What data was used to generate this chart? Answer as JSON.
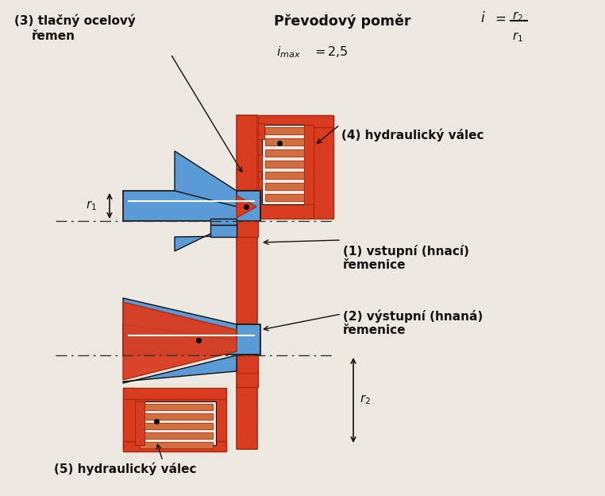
{
  "bg_color": "#ede8e0",
  "blue": "#5b9bd5",
  "red": "#d93b1e",
  "red_edge": "#aa2a10",
  "dark": "#111111",
  "white": "#ffffff",
  "copper": "#d07040",
  "title": "Převodový poměr",
  "label1": "(1) vstupní (hnací)\nřemenice",
  "label2": "(2) výstupní (hnaná)\nřemenice",
  "label3": "(3) tlačný ocelový\nřemen",
  "label4": "(4) hydraulický válec",
  "label5": "(5) hydraulický válec",
  "r1": "r₁",
  "r2": "r₂",
  "imax": "i",
  "imax_val": "= 2,5"
}
